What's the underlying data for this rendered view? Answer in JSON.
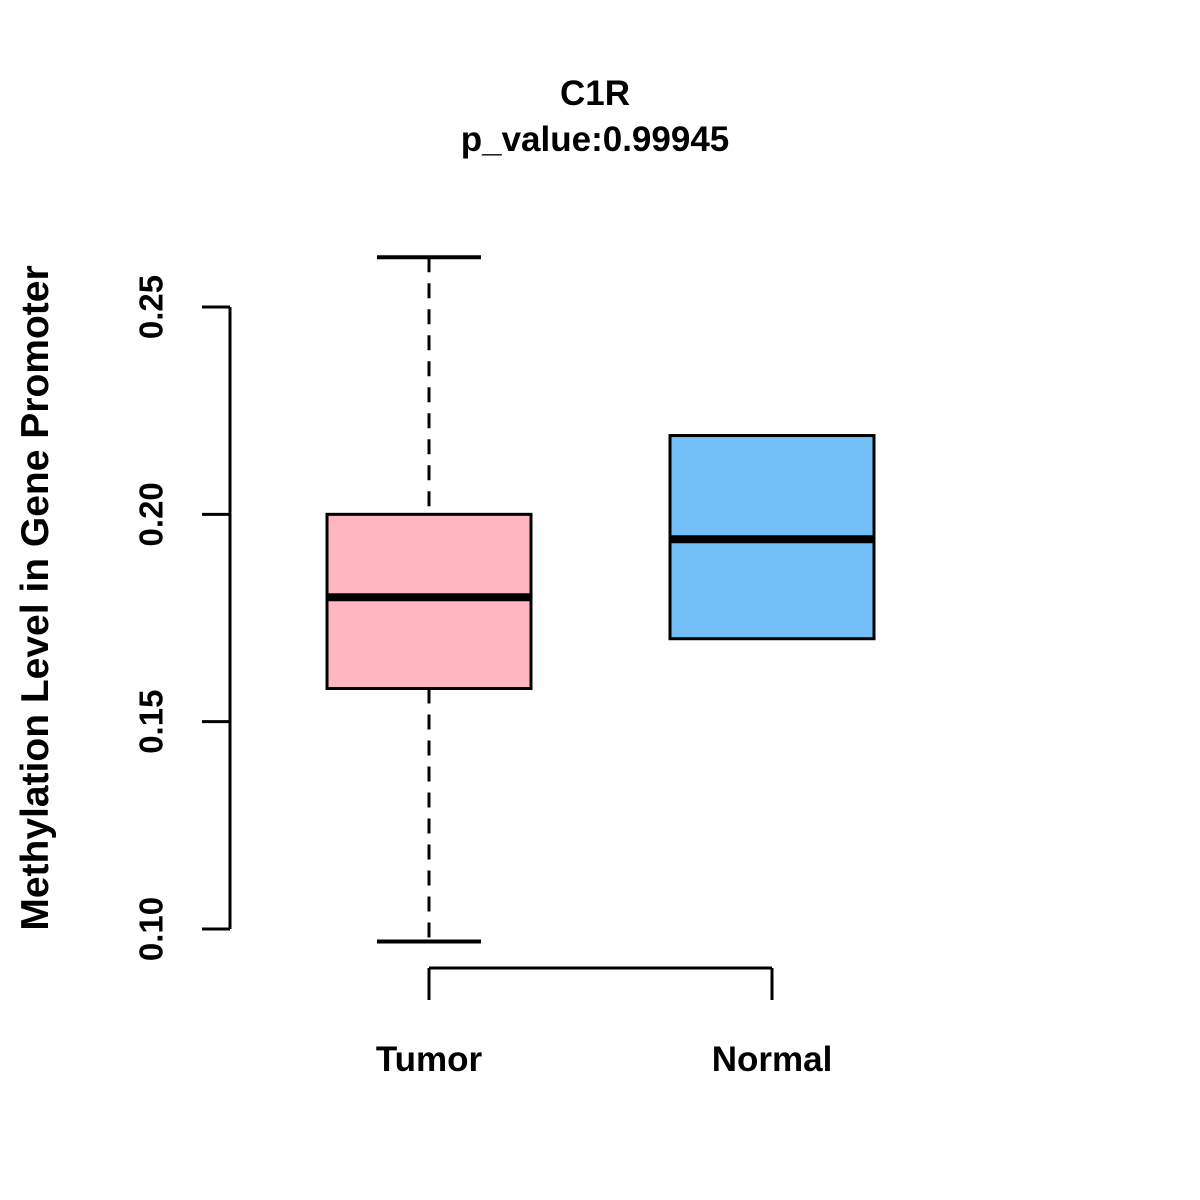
{
  "chart_data": {
    "type": "boxplot",
    "title": "C1R",
    "subtitle": "p_value:0.99945",
    "ylabel": "Methylation Level in Gene Promoter",
    "xlabel": "",
    "categories": [
      "Tumor",
      "Normal"
    ],
    "y_axis": {
      "ticks": [
        {
          "value": 0.1,
          "label": "0.10"
        },
        {
          "value": 0.15,
          "label": "0.15"
        },
        {
          "value": 0.2,
          "label": "0.20"
        },
        {
          "value": 0.25,
          "label": "0.25"
        }
      ],
      "range_shown": [
        0.095,
        0.265
      ],
      "grid": false
    },
    "groups": [
      {
        "label": "Tumor",
        "fill_color": "#FFB6C1",
        "whisker_low": 0.097,
        "q1": 0.158,
        "median": 0.18,
        "q3": 0.2,
        "whisker_high": 0.262
      },
      {
        "label": "Normal",
        "fill_color": "#74BFF7",
        "whisker_low": 0.17,
        "q1": 0.17,
        "median": 0.194,
        "q3": 0.219,
        "whisker_high": 0.219
      }
    ],
    "colors": {
      "box_border": "#000000",
      "median_line": "#000000",
      "whisker": "#000000",
      "axis": "#000000",
      "background": "#FFFFFF"
    },
    "legend": "none"
  }
}
